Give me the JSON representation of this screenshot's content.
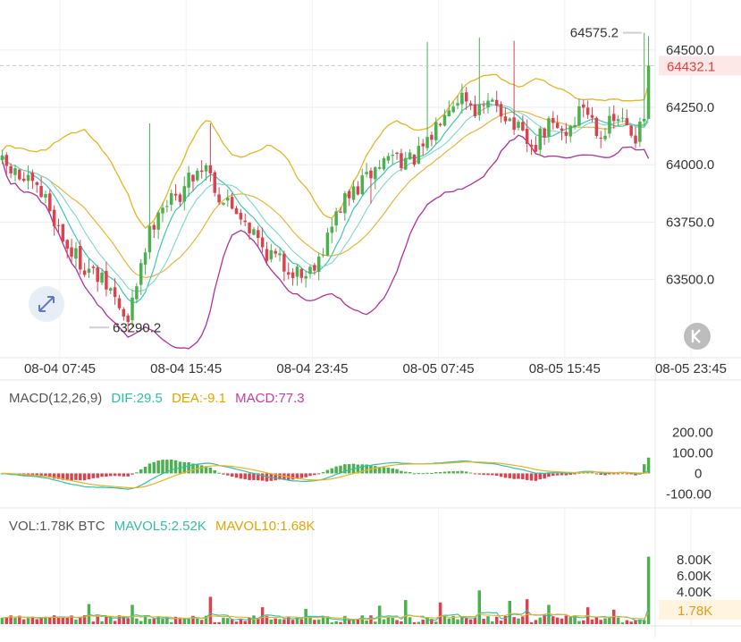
{
  "chart_data": [
    {
      "type": "candlestick",
      "panel": "price",
      "ylim": [
        63190,
        64640
      ],
      "yticks": [
        63500.0,
        63750.0,
        64000.0,
        64250.0,
        64500.0
      ],
      "ytick_labels": [
        "63500.0",
        "63750.0",
        "64000.0",
        "64250.0",
        "64500.0"
      ],
      "xtick_labels": [
        "08-04 07:45",
        "08-04 15:45",
        "08-04 23:45",
        "08-05 07:45",
        "08-05 15:45",
        "08-05 23:45"
      ],
      "high_label": "64575.2",
      "low_label": "63290.2",
      "current_price": 64432.1,
      "current_price_label": "64432.1",
      "candle_count": 150,
      "anchor_closes": [
        [
          0,
          64000
        ],
        [
          5,
          63930
        ],
        [
          10,
          63850
        ],
        [
          15,
          63640
        ],
        [
          20,
          63540
        ],
        [
          25,
          63450
        ],
        [
          29,
          63300
        ],
        [
          32,
          63580
        ],
        [
          36,
          63820
        ],
        [
          40,
          63850
        ],
        [
          44,
          63960
        ],
        [
          47,
          64010
        ],
        [
          50,
          63860
        ],
        [
          55,
          63790
        ],
        [
          60,
          63640
        ],
        [
          65,
          63560
        ],
        [
          70,
          63520
        ],
        [
          74,
          63640
        ],
        [
          78,
          63820
        ],
        [
          82,
          63900
        ],
        [
          86,
          63980
        ],
        [
          90,
          64050
        ],
        [
          94,
          64010
        ],
        [
          98,
          64080
        ],
        [
          102,
          64260
        ],
        [
          106,
          64310
        ],
        [
          110,
          64230
        ],
        [
          114,
          64270
        ],
        [
          118,
          64170
        ],
        [
          122,
          64060
        ],
        [
          126,
          64170
        ],
        [
          130,
          64140
        ],
        [
          134,
          64260
        ],
        [
          138,
          64140
        ],
        [
          142,
          64200
        ],
        [
          146,
          64120
        ],
        [
          149,
          64430
        ]
      ]
    },
    {
      "type": "bar",
      "panel": "macd",
      "legend_title": "MACD(12,26,9)",
      "dif_label": "DIF:29.5",
      "dea_label": "DEA:-9.1",
      "macd_label": "MACD:77.3",
      "yticks": [
        200,
        100,
        0,
        -100
      ],
      "ytick_labels": [
        "200.00",
        "100.00",
        "0",
        "-100.00"
      ],
      "ylim": [
        -160,
        260
      ]
    },
    {
      "type": "bar",
      "panel": "volume",
      "vol_label": "VOL:1.78K BTC",
      "mavol5_label": "MAVOL5:2.52K",
      "mavol10_label": "MAVOL10:1.68K",
      "yticks": [
        8000,
        6000,
        4000
      ],
      "ytick_labels": [
        "8.00K",
        "6.00K",
        "4.00K"
      ],
      "ylim": [
        0,
        9800
      ],
      "current_volume_label": "1.78K"
    }
  ],
  "colors": {
    "up": "#4caf50",
    "down": "#d9434f",
    "boll_mid": "#e6b422",
    "boll_upper": "#e6b422",
    "boll_lower": "#b2309a",
    "ma_fast": "#3ec6b4",
    "ma_slow": "#e8b53a",
    "dif": "#2fbfa8",
    "dea": "#e6b422",
    "macd": "#c43ea2",
    "grid": "#ececec",
    "axis_text": "#333333",
    "price_tag": "#e0403f"
  }
}
